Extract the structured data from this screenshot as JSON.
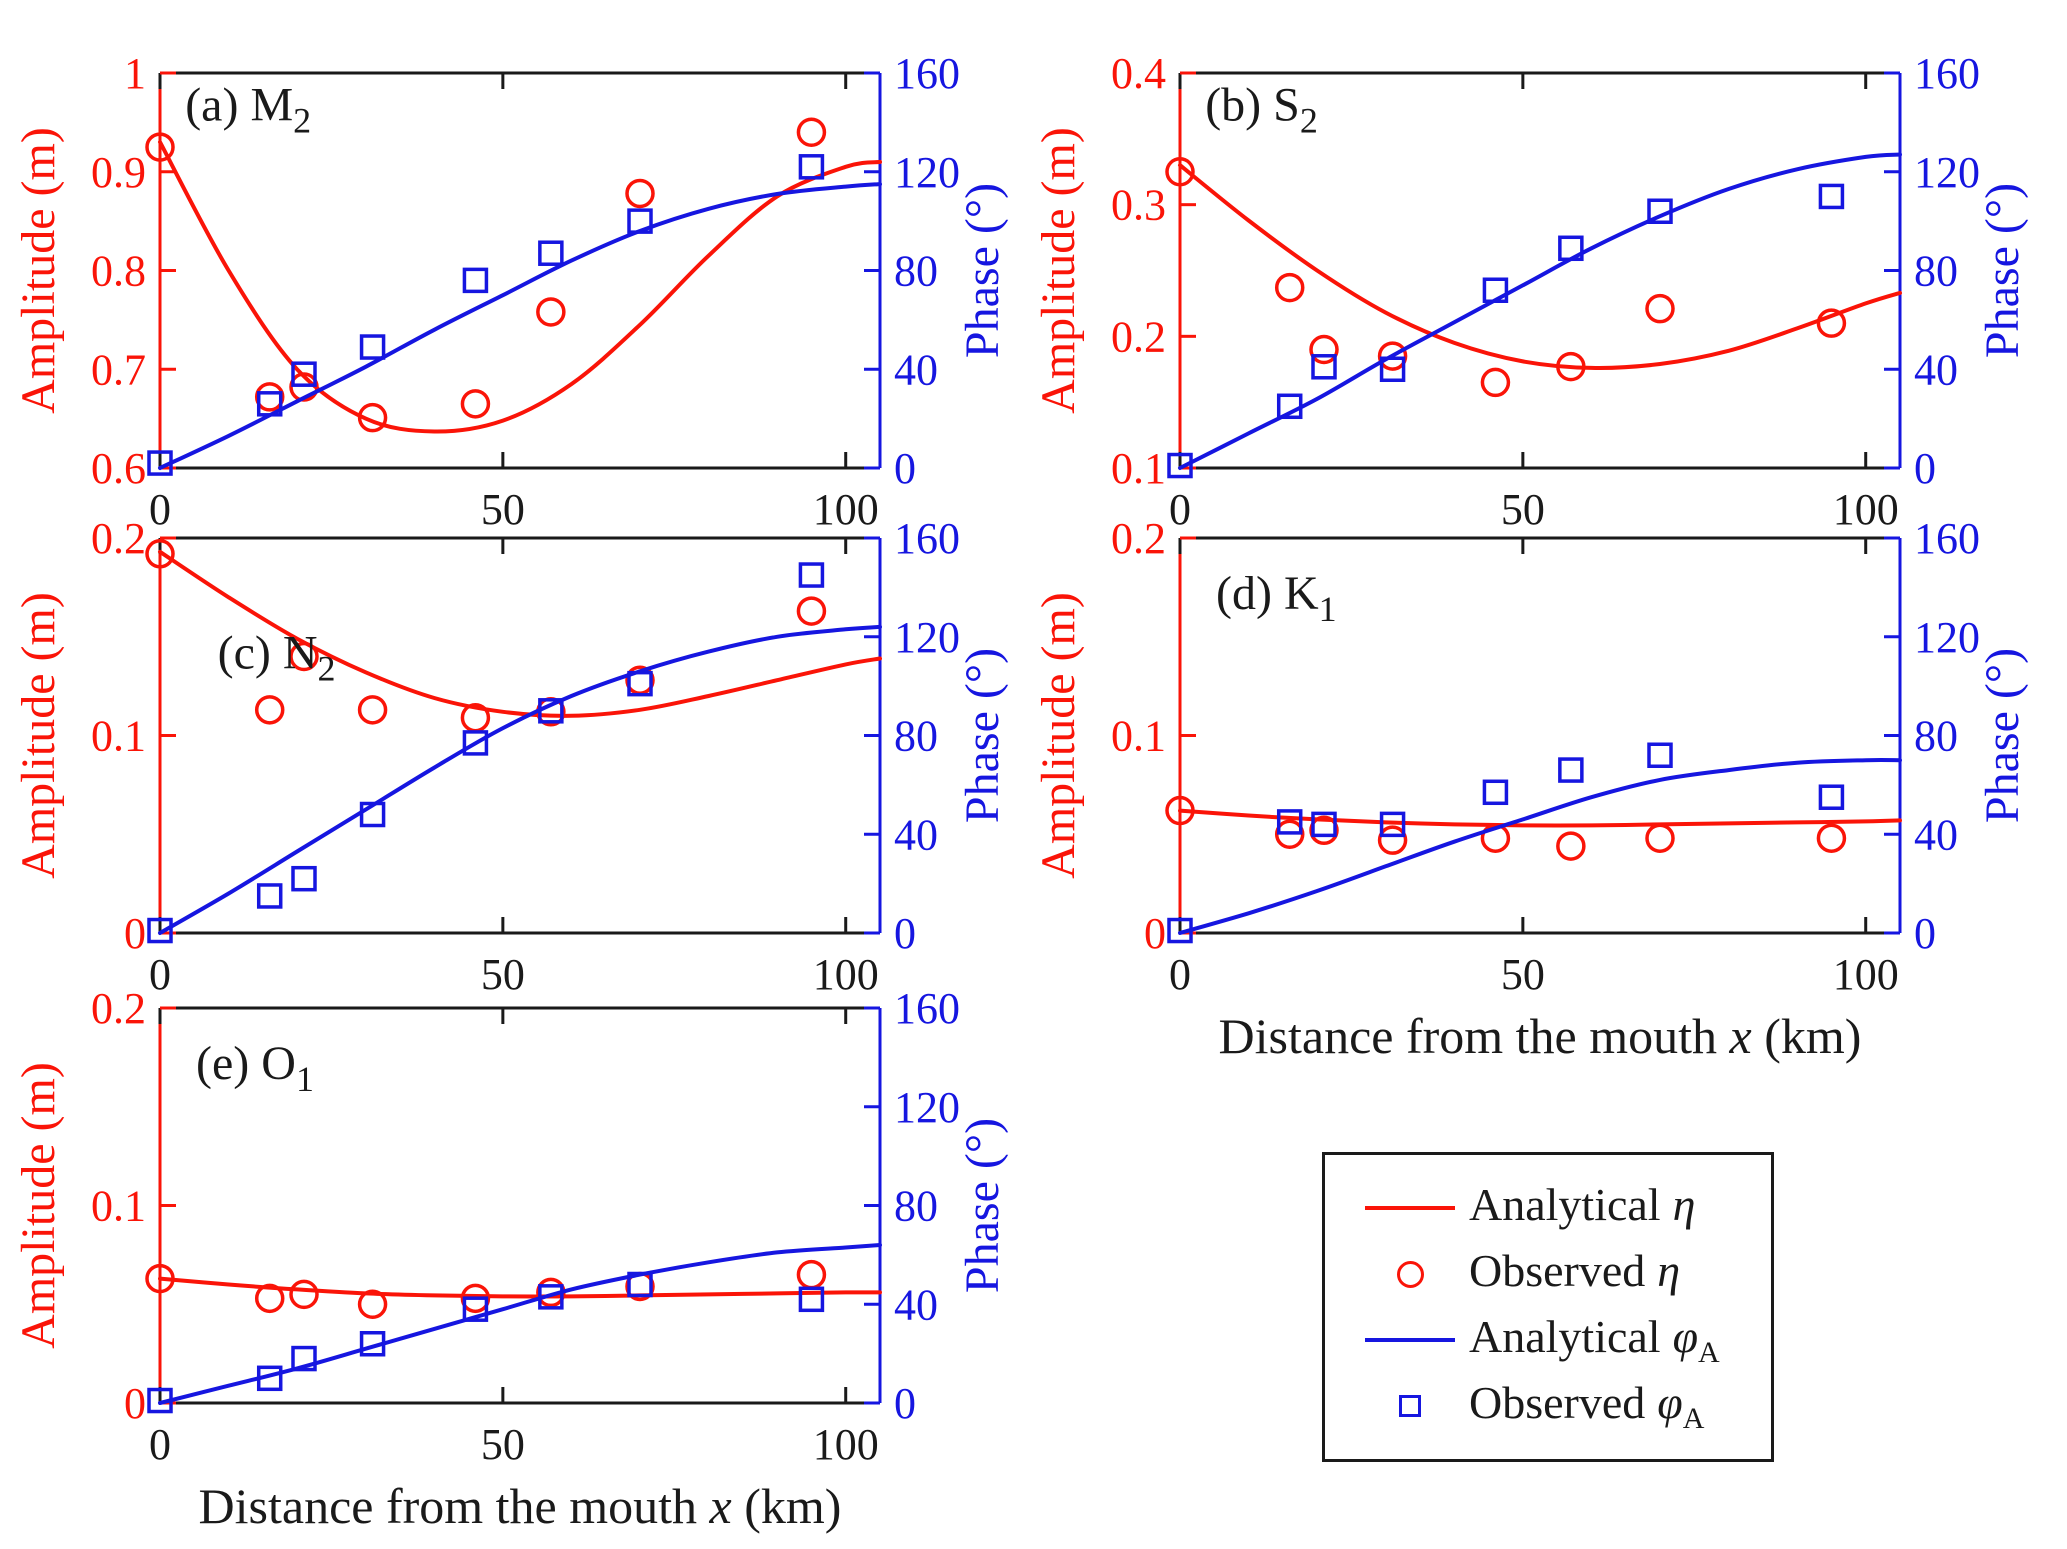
{
  "figure": {
    "xlabel": {
      "pre": "Distance from the mouth ",
      "var": "x",
      "post": " (km)"
    }
  },
  "colors": {
    "red": "#fa1408",
    "blue": "#1616e0",
    "axis": "#1a1a1a"
  },
  "legend": {
    "items": [
      {
        "marker": "red-line",
        "text": "Analytical",
        "symbol": "η",
        "sub": ""
      },
      {
        "marker": "red-circle",
        "text": "Observed",
        "symbol": "η",
        "sub": ""
      },
      {
        "marker": "blue-line",
        "text": "Analytical",
        "symbol": "φ",
        "sub": "A"
      },
      {
        "marker": "blue-square",
        "text": "Observed",
        "symbol": "φ",
        "sub": "A"
      }
    ]
  },
  "chart_data": [
    {
      "id": "a",
      "type": "line",
      "title": {
        "pre": "(a) ",
        "main": "M",
        "sub": "2"
      },
      "title_pos": [
        0.035,
        0.12
      ],
      "xlim": [
        0,
        105
      ],
      "x_tick_values": [
        0,
        50,
        100
      ],
      "x_tick_labels": [
        "0",
        "50",
        "100"
      ],
      "amp_lim": [
        0.6,
        1.0
      ],
      "amp_tick_values": [
        0.6,
        0.7,
        0.8,
        0.9,
        1.0
      ],
      "amp_tick_labels": [
        "0.6",
        "0.7",
        "0.8",
        "0.9",
        "1"
      ],
      "phase_lim": [
        0,
        160
      ],
      "phase_tick_values": [
        0,
        40,
        80,
        120,
        160
      ],
      "phase_tick_labels": [
        "0",
        "40",
        "80",
        "120",
        "160"
      ],
      "ylabel_left": "Amplitude (m)",
      "ylabel_right": "Phase (°)",
      "show_xlabel": false,
      "series": [
        {
          "name": "Analytical η",
          "axis": "amp",
          "style": "line",
          "color": "red",
          "x": [
            0,
            10,
            20,
            30,
            40,
            50,
            60,
            70,
            80,
            90,
            100,
            105
          ],
          "y": [
            0.93,
            0.8,
            0.7,
            0.65,
            0.637,
            0.648,
            0.685,
            0.745,
            0.815,
            0.875,
            0.905,
            0.91
          ]
        },
        {
          "name": "Observed η",
          "axis": "amp",
          "style": "circle",
          "color": "red",
          "x": [
            0,
            16,
            21,
            31,
            46,
            57,
            70,
            95
          ],
          "y": [
            0.925,
            0.672,
            0.682,
            0.651,
            0.665,
            0.758,
            0.878,
            0.94
          ]
        },
        {
          "name": "Analytical φA",
          "axis": "phase",
          "style": "line",
          "color": "blue",
          "x": [
            0,
            10,
            20,
            30,
            40,
            50,
            60,
            70,
            80,
            90,
            100,
            105
          ],
          "y": [
            0,
            13,
            27,
            41,
            56,
            70,
            84,
            96,
            105,
            111,
            114,
            115
          ]
        },
        {
          "name": "Observed φA",
          "axis": "phase",
          "style": "square",
          "color": "blue",
          "x": [
            0,
            16,
            21,
            31,
            46,
            57,
            70,
            95
          ],
          "y": [
            2,
            26,
            38,
            49,
            76,
            87,
            100,
            122
          ]
        }
      ]
    },
    {
      "id": "b",
      "type": "line",
      "title": {
        "pre": "(b) ",
        "main": "S",
        "sub": "2"
      },
      "title_pos": [
        0.035,
        0.12
      ],
      "xlim": [
        0,
        105
      ],
      "x_tick_values": [
        0,
        50,
        100
      ],
      "x_tick_labels": [
        "0",
        "50",
        "100"
      ],
      "amp_lim": [
        0.1,
        0.4
      ],
      "amp_tick_values": [
        0.1,
        0.2,
        0.3,
        0.4
      ],
      "amp_tick_labels": [
        "0.1",
        "0.2",
        "0.3",
        "0.4"
      ],
      "phase_lim": [
        0,
        160
      ],
      "phase_tick_values": [
        0,
        40,
        80,
        120,
        160
      ],
      "phase_tick_labels": [
        "0",
        "40",
        "80",
        "120",
        "160"
      ],
      "ylabel_left": "Amplitude (m)",
      "ylabel_right": "Phase (°)",
      "show_xlabel": false,
      "series": [
        {
          "name": "Analytical η",
          "axis": "amp",
          "style": "line",
          "color": "red",
          "x": [
            0,
            10,
            20,
            30,
            40,
            50,
            60,
            70,
            80,
            90,
            100,
            105
          ],
          "y": [
            0.33,
            0.288,
            0.25,
            0.218,
            0.195,
            0.181,
            0.176,
            0.179,
            0.189,
            0.206,
            0.225,
            0.233
          ]
        },
        {
          "name": "Observed η",
          "axis": "amp",
          "style": "circle",
          "color": "red",
          "x": [
            0,
            16,
            21,
            31,
            46,
            57,
            70,
            95
          ],
          "y": [
            0.325,
            0.237,
            0.19,
            0.185,
            0.165,
            0.177,
            0.221,
            0.21
          ]
        },
        {
          "name": "Analytical φA",
          "axis": "phase",
          "style": "line",
          "color": "blue",
          "x": [
            0,
            10,
            20,
            30,
            40,
            50,
            60,
            70,
            80,
            90,
            100,
            105
          ],
          "y": [
            0,
            14,
            28,
            44,
            59,
            74,
            89,
            102,
            113,
            121,
            126,
            127
          ]
        },
        {
          "name": "Observed φA",
          "axis": "phase",
          "style": "square",
          "color": "blue",
          "x": [
            0,
            16,
            21,
            31,
            46,
            57,
            70,
            95
          ],
          "y": [
            1,
            25,
            41,
            40,
            72,
            89,
            104,
            110
          ]
        }
      ]
    },
    {
      "id": "c",
      "type": "line",
      "title": {
        "pre": "(c) ",
        "main": "N",
        "sub": "2"
      },
      "title_pos": [
        0.08,
        0.33
      ],
      "xlim": [
        0,
        105
      ],
      "x_tick_values": [
        0,
        50,
        100
      ],
      "x_tick_labels": [
        "0",
        "50",
        "100"
      ],
      "amp_lim": [
        0,
        0.2
      ],
      "amp_tick_values": [
        0,
        0.1,
        0.2
      ],
      "amp_tick_labels": [
        "0",
        "0.1",
        "0.2"
      ],
      "phase_lim": [
        0,
        160
      ],
      "phase_tick_values": [
        0,
        40,
        80,
        120,
        160
      ],
      "phase_tick_labels": [
        "0",
        "40",
        "80",
        "120",
        "160"
      ],
      "ylabel_left": "Amplitude (m)",
      "ylabel_right": "Phase (°)",
      "show_xlabel": false,
      "series": [
        {
          "name": "Analytical η",
          "axis": "amp",
          "style": "line",
          "color": "red",
          "x": [
            0,
            10,
            20,
            30,
            40,
            50,
            60,
            70,
            80,
            90,
            100,
            105
          ],
          "y": [
            0.193,
            0.17,
            0.149,
            0.132,
            0.119,
            0.112,
            0.11,
            0.113,
            0.12,
            0.128,
            0.136,
            0.139
          ]
        },
        {
          "name": "Observed η",
          "axis": "amp",
          "style": "circle",
          "color": "red",
          "x": [
            0,
            16,
            21,
            31,
            46,
            57,
            70,
            95
          ],
          "y": [
            0.192,
            0.113,
            0.14,
            0.113,
            0.109,
            0.112,
            0.128,
            0.163
          ]
        },
        {
          "name": "Analytical φA",
          "axis": "phase",
          "style": "line",
          "color": "blue",
          "x": [
            0,
            10,
            20,
            30,
            40,
            50,
            60,
            70,
            80,
            90,
            100,
            105
          ],
          "y": [
            0,
            16,
            33,
            50,
            67,
            83,
            96,
            106,
            114,
            120,
            123,
            124
          ]
        },
        {
          "name": "Observed φA",
          "axis": "phase",
          "style": "square",
          "color": "blue",
          "x": [
            0,
            16,
            21,
            31,
            46,
            57,
            70,
            95
          ],
          "y": [
            1,
            15,
            22,
            48,
            77,
            90,
            101,
            145
          ]
        }
      ]
    },
    {
      "id": "d",
      "type": "line",
      "title": {
        "pre": "(d) ",
        "main": "K",
        "sub": "1"
      },
      "title_pos": [
        0.05,
        0.18
      ],
      "xlim": [
        0,
        105
      ],
      "x_tick_values": [
        0,
        50,
        100
      ],
      "x_tick_labels": [
        "0",
        "50",
        "100"
      ],
      "amp_lim": [
        0,
        0.2
      ],
      "amp_tick_values": [
        0,
        0.1,
        0.2
      ],
      "amp_tick_labels": [
        "0",
        "0.1",
        "0.2"
      ],
      "phase_lim": [
        0,
        160
      ],
      "phase_tick_values": [
        0,
        40,
        80,
        120,
        160
      ],
      "phase_tick_labels": [
        "0",
        "40",
        "80",
        "120",
        "160"
      ],
      "ylabel_left": "Amplitude (m)",
      "ylabel_right": "Phase (°)",
      "show_xlabel": true,
      "series": [
        {
          "name": "Analytical η",
          "axis": "amp",
          "style": "line",
          "color": "red",
          "x": [
            0,
            10,
            20,
            30,
            40,
            50,
            60,
            70,
            80,
            90,
            100,
            105
          ],
          "y": [
            0.062,
            0.0595,
            0.0575,
            0.056,
            0.055,
            0.0545,
            0.0545,
            0.055,
            0.0555,
            0.056,
            0.0565,
            0.057
          ]
        },
        {
          "name": "Observed η",
          "axis": "amp",
          "style": "circle",
          "color": "red",
          "x": [
            0,
            16,
            21,
            31,
            46,
            57,
            70,
            95
          ],
          "y": [
            0.062,
            0.05,
            0.052,
            0.047,
            0.048,
            0.044,
            0.048,
            0.048
          ]
        },
        {
          "name": "Analytical φA",
          "axis": "phase",
          "style": "line",
          "color": "blue",
          "x": [
            0,
            10,
            20,
            30,
            40,
            50,
            60,
            70,
            80,
            90,
            100,
            105
          ],
          "y": [
            0,
            8,
            17,
            27,
            37,
            46,
            55,
            62,
            66,
            69,
            70,
            70
          ]
        },
        {
          "name": "Observed φA",
          "axis": "phase",
          "style": "square",
          "color": "blue",
          "x": [
            0,
            16,
            21,
            31,
            46,
            57,
            70,
            95
          ],
          "y": [
            1,
            45,
            44,
            44,
            57,
            66,
            72,
            55
          ]
        }
      ]
    },
    {
      "id": "e",
      "type": "line",
      "title": {
        "pre": "(e) ",
        "main": "O",
        "sub": "1"
      },
      "title_pos": [
        0.05,
        0.18
      ],
      "xlim": [
        0,
        105
      ],
      "x_tick_values": [
        0,
        50,
        100
      ],
      "x_tick_labels": [
        "0",
        "50",
        "100"
      ],
      "amp_lim": [
        0,
        0.2
      ],
      "amp_tick_values": [
        0,
        0.1,
        0.2
      ],
      "amp_tick_labels": [
        "0",
        "0.1",
        "0.2"
      ],
      "phase_lim": [
        0,
        160
      ],
      "phase_tick_values": [
        0,
        40,
        80,
        120,
        160
      ],
      "phase_tick_labels": [
        "0",
        "40",
        "80",
        "120",
        "160"
      ],
      "ylabel_left": "Amplitude (m)",
      "ylabel_right": "Phase (°)",
      "show_xlabel": true,
      "series": [
        {
          "name": "Analytical η",
          "axis": "amp",
          "style": "line",
          "color": "red",
          "x": [
            0,
            10,
            20,
            30,
            40,
            50,
            60,
            70,
            80,
            90,
            100,
            105
          ],
          "y": [
            0.063,
            0.06,
            0.0575,
            0.0555,
            0.0545,
            0.054,
            0.054,
            0.0545,
            0.055,
            0.0555,
            0.056,
            0.056
          ]
        },
        {
          "name": "Observed η",
          "axis": "amp",
          "style": "circle",
          "color": "red",
          "x": [
            0,
            16,
            21,
            31,
            46,
            57,
            70,
            95
          ],
          "y": [
            0.063,
            0.053,
            0.055,
            0.05,
            0.053,
            0.056,
            0.059,
            0.065
          ]
        },
        {
          "name": "Analytical φA",
          "axis": "phase",
          "style": "line",
          "color": "blue",
          "x": [
            0,
            10,
            20,
            30,
            40,
            50,
            60,
            70,
            80,
            90,
            100,
            105
          ],
          "y": [
            0,
            7,
            14,
            22,
            30,
            38,
            46,
            52,
            57,
            61,
            63,
            64
          ]
        },
        {
          "name": "Observed φA",
          "axis": "phase",
          "style": "square",
          "color": "blue",
          "x": [
            0,
            16,
            21,
            31,
            46,
            57,
            70,
            95
          ],
          "y": [
            1,
            10,
            18,
            24,
            38,
            43,
            48,
            42
          ]
        }
      ]
    }
  ]
}
